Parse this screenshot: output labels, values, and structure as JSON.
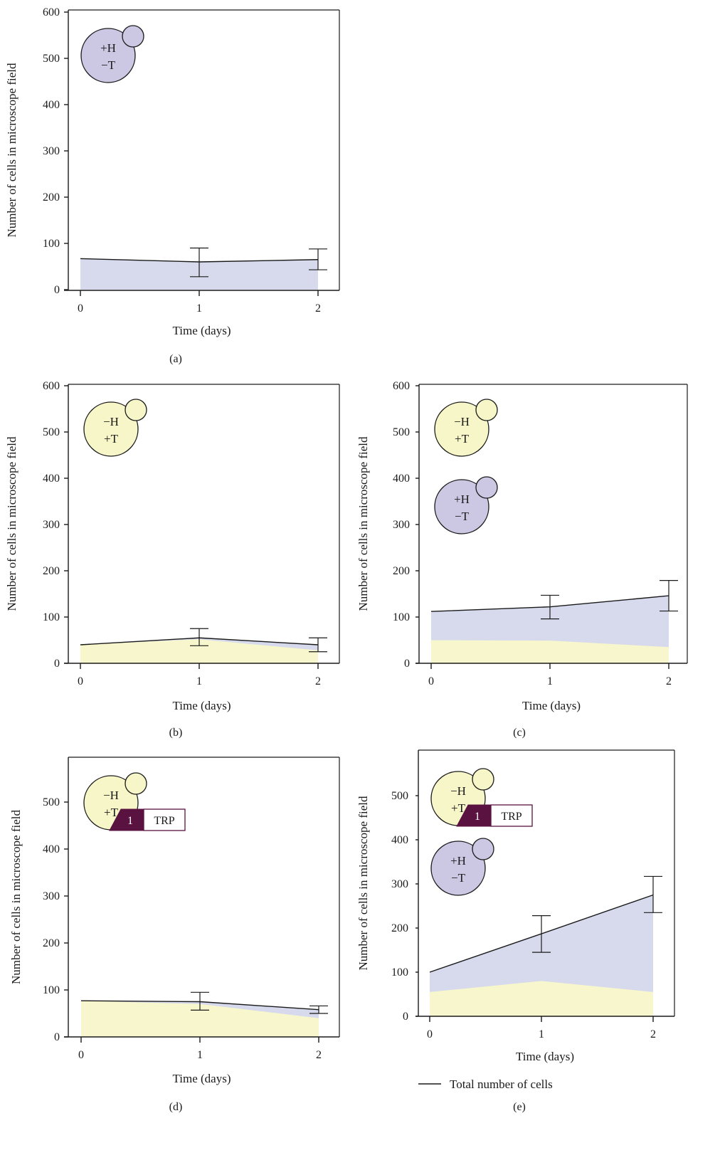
{
  "colors": {
    "purple_fill": "#d6daec",
    "yellow_fill": "#f7f6cc",
    "purple_cell": "#ccc8e4",
    "yellow_cell": "#f7f6c8",
    "trp_box": "#5a1240",
    "line": "#1a1a1a"
  },
  "legend": {
    "label": "Total number of cells"
  },
  "chart_data": [
    {
      "type": "area",
      "panel_label": "(a)",
      "xlabel": "Time (days)",
      "ylabel": "Number of cells in microscope field",
      "x": [
        0,
        1,
        2
      ],
      "x_ticks": [
        "0",
        "1",
        "2"
      ],
      "y_ticks": [
        "0",
        "100",
        "200",
        "300",
        "400",
        "500",
        "600"
      ],
      "ylim": [
        0,
        600
      ],
      "series": [
        {
          "name": "-H +T strain",
          "color": "yellow",
          "values": [
            0,
            0,
            0
          ]
        },
        {
          "name": "+H -T strain",
          "color": "purple",
          "values": [
            67,
            60,
            65
          ]
        }
      ],
      "total": [
        67,
        60,
        65
      ],
      "errors": [
        null,
        [
          28,
          90
        ],
        [
          43,
          88
        ]
      ],
      "cells": [
        {
          "kind": "purple",
          "line1": "+H",
          "line2": "−T",
          "trp": false
        }
      ]
    },
    {
      "type": "area",
      "panel_label": "(b)",
      "xlabel": "Time (days)",
      "ylabel": "Number of cells in microscope field",
      "x": [
        0,
        1,
        2
      ],
      "x_ticks": [
        "0",
        "1",
        "2"
      ],
      "y_ticks": [
        "0",
        "100",
        "200",
        "300",
        "400",
        "500",
        "600"
      ],
      "ylim": [
        0,
        600
      ],
      "series": [
        {
          "name": "-H +T strain",
          "color": "yellow",
          "values": [
            40,
            52,
            28
          ]
        },
        {
          "name": "+H -T strain",
          "color": "purple",
          "values": [
            40,
            55,
            40
          ]
        }
      ],
      "total": [
        40,
        55,
        40
      ],
      "errors": [
        null,
        [
          38,
          75
        ],
        [
          25,
          55
        ]
      ],
      "cells": [
        {
          "kind": "yellow",
          "line1": "−H",
          "line2": "+T",
          "trp": false
        }
      ]
    },
    {
      "type": "area",
      "panel_label": "(c)",
      "xlabel": "Time (days)",
      "ylabel": "Number of cells in microscope field",
      "x": [
        0,
        1,
        2
      ],
      "x_ticks": [
        "0",
        "1",
        "2"
      ],
      "y_ticks": [
        "0",
        "100",
        "200",
        "300",
        "400",
        "500",
        "600"
      ],
      "ylim": [
        0,
        600
      ],
      "series": [
        {
          "name": "-H +T strain",
          "color": "yellow",
          "values": [
            50,
            49,
            35
          ]
        },
        {
          "name": "+H -T strain",
          "color": "purple",
          "values": [
            112,
            122,
            146
          ]
        }
      ],
      "total": [
        112,
        122,
        146
      ],
      "errors": [
        null,
        [
          96,
          147
        ],
        [
          113,
          179
        ]
      ],
      "cells": [
        {
          "kind": "yellow",
          "line1": "−H",
          "line2": "+T",
          "trp": false
        },
        {
          "kind": "purple",
          "line1": "+H",
          "line2": "−T",
          "trp": false
        }
      ]
    },
    {
      "type": "area",
      "panel_label": "(d)",
      "xlabel": "Time (days)",
      "ylabel": "Number of cells in microscope field",
      "x": [
        0,
        1,
        2
      ],
      "x_ticks": [
        "0",
        "1",
        "2"
      ],
      "y_ticks": [
        "0",
        "100",
        "200",
        "300",
        "400",
        "500"
      ],
      "ylim": [
        0,
        600
      ],
      "series": [
        {
          "name": "-H +T strain",
          "color": "yellow",
          "values": [
            77,
            70,
            40
          ]
        },
        {
          "name": "+H -T strain",
          "color": "purple",
          "values": [
            77,
            75,
            58
          ]
        }
      ],
      "total": [
        77,
        75,
        58
      ],
      "errors": [
        null,
        [
          57,
          95
        ],
        [
          50,
          66
        ]
      ],
      "cells": [
        {
          "kind": "yellow",
          "line1": "−H",
          "line2": "+T",
          "trp": true,
          "trp_num": "1",
          "trp_label": "TRP"
        }
      ]
    },
    {
      "type": "area",
      "panel_label": "(e)",
      "xlabel": "Time (days)",
      "ylabel": "Number of cells in microscope field",
      "x": [
        0,
        1,
        2
      ],
      "x_ticks": [
        "0",
        "1",
        "2"
      ],
      "y_ticks": [
        "0",
        "100",
        "200",
        "300",
        "400",
        "500"
      ],
      "ylim": [
        0,
        600
      ],
      "series": [
        {
          "name": "-H +T strain",
          "color": "yellow",
          "values": [
            55,
            80,
            55
          ]
        },
        {
          "name": "+H -T strain",
          "color": "purple",
          "values": [
            100,
            187,
            275
          ]
        }
      ],
      "total": [
        100,
        187,
        275
      ],
      "errors": [
        null,
        [
          145,
          228
        ],
        [
          235,
          317
        ]
      ],
      "cells": [
        {
          "kind": "yellow",
          "line1": "−H",
          "line2": "+T",
          "trp": true,
          "trp_num": "1",
          "trp_label": "TRP"
        },
        {
          "kind": "purple",
          "line1": "+H",
          "line2": "−T",
          "trp": false
        }
      ]
    }
  ]
}
